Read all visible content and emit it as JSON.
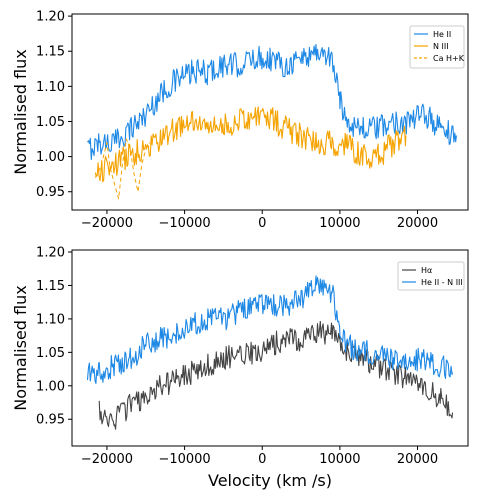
{
  "chart_data": [
    {
      "type": "line",
      "xlabel": "",
      "ylabel": "Normalised flux",
      "xlim": [
        -24500,
        26500
      ],
      "ylim": [
        0.924,
        1.203
      ],
      "xticks": [
        -20000,
        -10000,
        0,
        10000,
        20000
      ],
      "xtick_labels": [
        "−20000",
        "−10000",
        "0",
        "10000",
        "20000"
      ],
      "yticks": [
        0.95,
        1.0,
        1.05,
        1.1,
        1.15,
        1.2
      ],
      "ytick_labels": [
        "0.95",
        "1.00",
        "1.05",
        "1.10",
        "1.15",
        "1.20"
      ],
      "legend_position": "top-right",
      "series": [
        {
          "name": "He II",
          "color": "#1e88e5",
          "dash": false,
          "x": [
            -22500,
            -21000,
            -19000,
            -17000,
            -15000,
            -13000,
            -11000,
            -9000,
            -7000,
            -5000,
            -3000,
            -1000,
            1000,
            3000,
            5000,
            7000,
            9000,
            10000,
            11000,
            13000,
            15000,
            17000,
            19000,
            21000,
            23000,
            25000
          ],
          "y": [
            1.01,
            1.02,
            1.02,
            1.04,
            1.06,
            1.09,
            1.11,
            1.12,
            1.12,
            1.13,
            1.13,
            1.14,
            1.14,
            1.13,
            1.14,
            1.15,
            1.14,
            1.08,
            1.05,
            1.04,
            1.04,
            1.05,
            1.05,
            1.06,
            1.04,
            1.03
          ]
        },
        {
          "name": "N III",
          "color": "#f5a300",
          "dash": false,
          "x": [
            -21500,
            -13000,
            -11000,
            -9000,
            -7000,
            -5000,
            -3000,
            -1000,
            1000,
            3000,
            5000,
            7000,
            9000,
            11000,
            13000,
            15000,
            17000,
            18500
          ],
          "y": [
            0.975,
            1.025,
            1.04,
            1.05,
            1.04,
            1.045,
            1.05,
            1.06,
            1.055,
            1.04,
            1.03,
            1.02,
            1.02,
            1.015,
            1.0,
            1.0,
            1.02,
            1.03
          ]
        },
        {
          "name": "Ca H+K",
          "color": "#f5a300",
          "dash": true,
          "x": [
            -21500,
            -20800,
            -20000,
            -19600,
            -19000,
            -18500,
            -18000,
            -17500,
            -17000,
            -16500,
            -16000,
            -15500,
            -15000,
            -14500
          ],
          "y": [
            0.97,
            0.985,
            1.02,
            0.985,
            0.96,
            0.94,
            0.99,
            1.025,
            1.01,
            0.975,
            0.95,
            0.99,
            1.01,
            1.02
          ]
        }
      ]
    },
    {
      "type": "line",
      "xlabel": "Velocity (km /s)",
      "ylabel": "Normalised flux",
      "xlim": [
        -24500,
        26500
      ],
      "ylim": [
        0.91,
        1.203
      ],
      "xticks": [
        -20000,
        -10000,
        0,
        10000,
        20000
      ],
      "xtick_labels": [
        "−20000",
        "−10000",
        "0",
        "10000",
        "20000"
      ],
      "yticks": [
        0.95,
        1.0,
        1.05,
        1.1,
        1.15,
        1.2
      ],
      "ytick_labels": [
        "0.95",
        "1.00",
        "1.05",
        "1.10",
        "1.15",
        "1.20"
      ],
      "legend_position": "top-right",
      "series": [
        {
          "name": "Hα",
          "color": "#444444",
          "dash": false,
          "x": [
            -21000,
            -19000,
            -17000,
            -15000,
            -13000,
            -11000,
            -9000,
            -7000,
            -5000,
            -3000,
            -1000,
            1000,
            3000,
            5000,
            7000,
            9000,
            10000,
            11000,
            13000,
            15000,
            17000,
            19000,
            21000,
            23000,
            24500
          ],
          "y": [
            0.96,
            0.95,
            0.97,
            0.98,
            1.0,
            1.01,
            1.02,
            1.03,
            1.04,
            1.05,
            1.05,
            1.06,
            1.07,
            1.07,
            1.08,
            1.08,
            1.06,
            1.05,
            1.04,
            1.03,
            1.02,
            1.01,
            1.0,
            0.98,
            0.96
          ]
        },
        {
          "name": "He II - N III",
          "color": "#1e88e5",
          "dash": false,
          "x": [
            -22500,
            -21000,
            -19000,
            -17000,
            -15000,
            -13000,
            -11000,
            -9000,
            -7000,
            -5000,
            -3000,
            -1000,
            1000,
            3000,
            5000,
            7000,
            9000,
            10000,
            11000,
            13000,
            15000,
            17000,
            19000,
            21000,
            23000,
            24500
          ],
          "y": [
            1.02,
            1.02,
            1.03,
            1.04,
            1.06,
            1.07,
            1.08,
            1.09,
            1.1,
            1.1,
            1.11,
            1.12,
            1.12,
            1.12,
            1.13,
            1.15,
            1.14,
            1.08,
            1.06,
            1.05,
            1.05,
            1.04,
            1.04,
            1.04,
            1.03,
            1.02
          ]
        }
      ]
    }
  ]
}
